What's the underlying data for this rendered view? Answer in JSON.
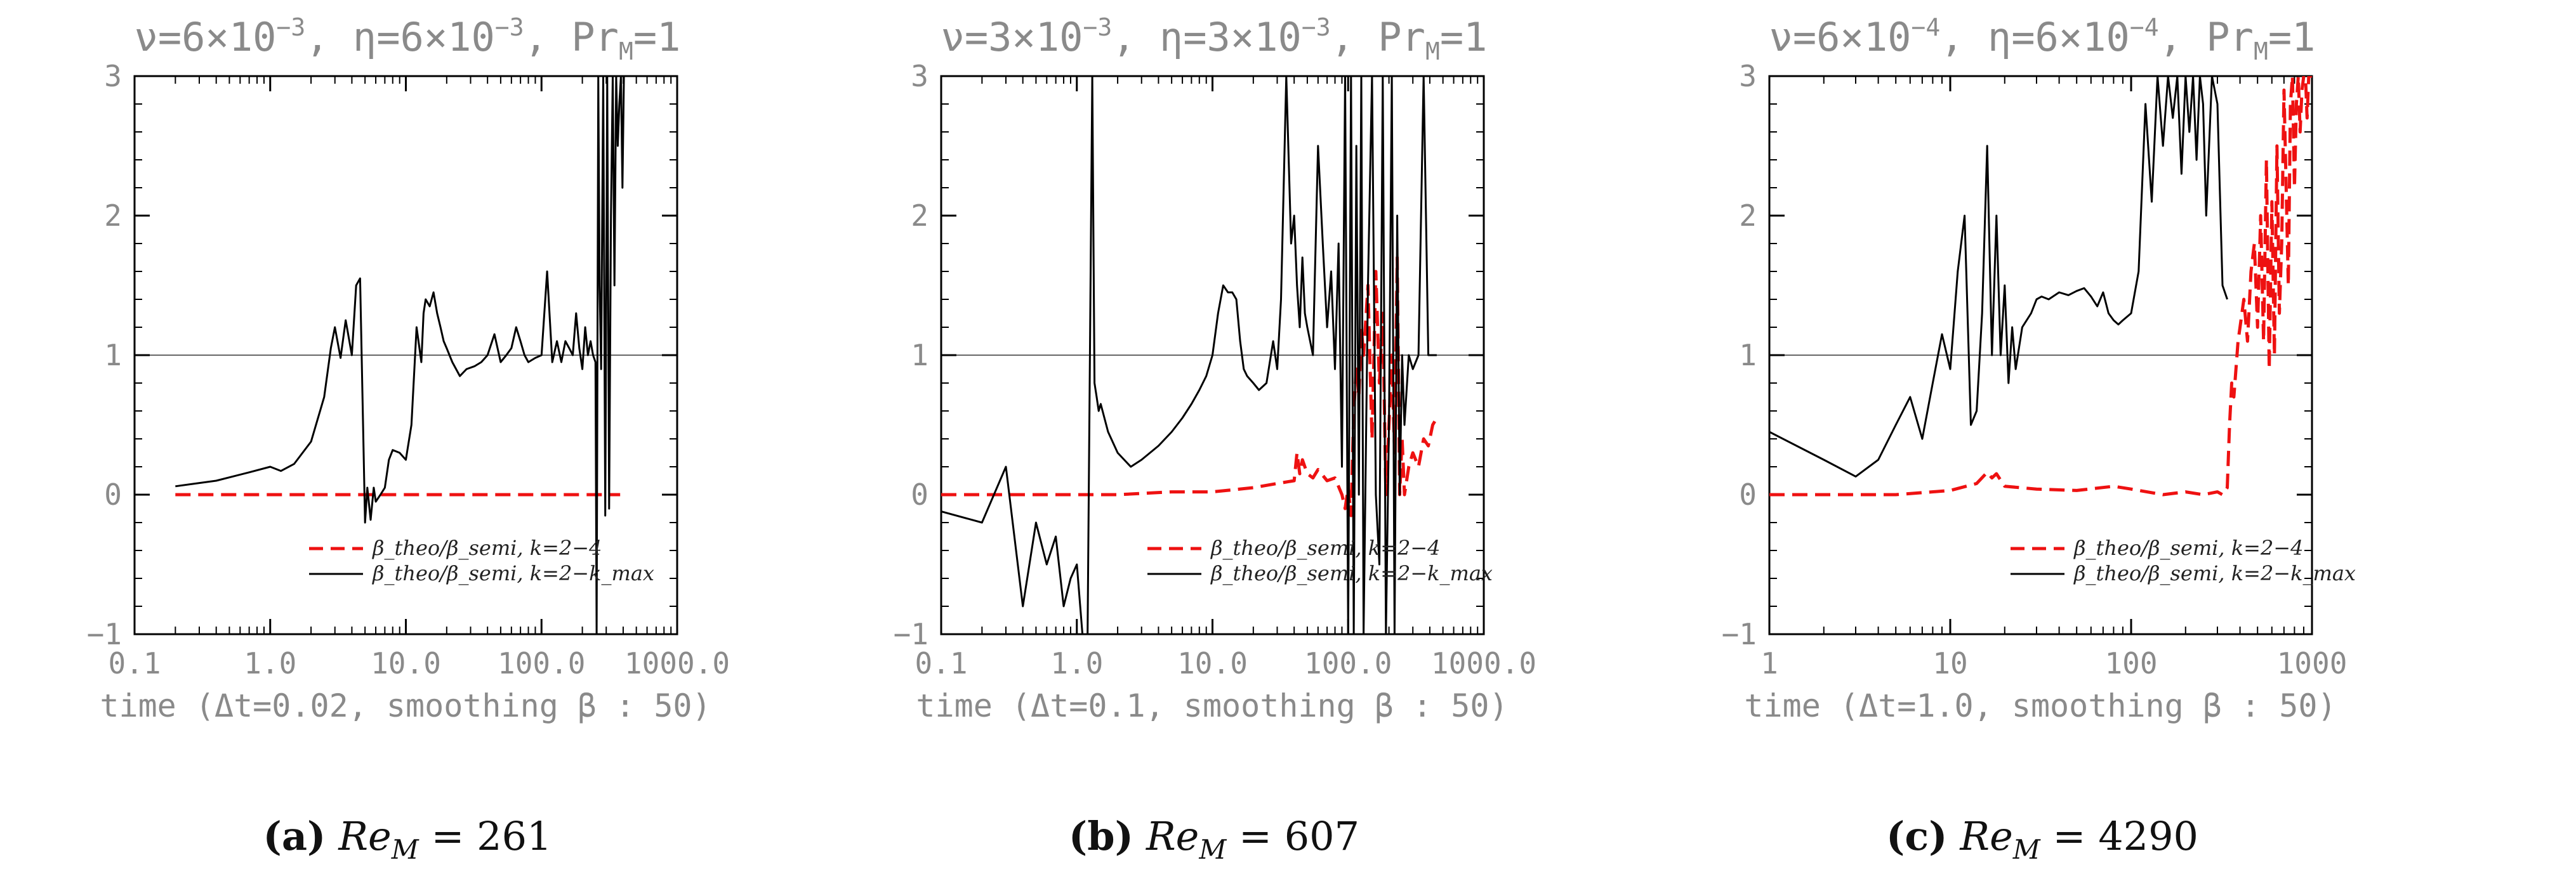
{
  "figure": {
    "colors": {
      "black_series": "#000000",
      "red_series": "#ee1111",
      "reference": "#666666",
      "axis": "#000000",
      "text": "#8a8a8a"
    }
  },
  "chart_data": [
    {
      "type": "line",
      "title": "ν=6×10⁻³, η=6×10⁻³, Pr_M=1",
      "title_parts": {
        "nu": "ν=6×10",
        "nu_exp": "−3",
        "eta": ", η=6×10",
        "eta_exp": "−3",
        "pr": ", Pr",
        "pr_sub": "M",
        "pr_val": "=1"
      },
      "xlabel": "time (Δt=0.02, smoothing β : 50)",
      "xscale": "log",
      "xlim": [
        0.1,
        1000
      ],
      "ylim": [
        -1,
        3
      ],
      "xticks": [
        0.1,
        1,
        10,
        100,
        1000
      ],
      "xtick_labels": [
        "0.1",
        "1.0",
        "10.0",
        "100.0",
        "1000.0"
      ],
      "yticks": [
        -1,
        0,
        1,
        2,
        3
      ],
      "ytick_labels": [
        "−1",
        "0",
        "1",
        "2",
        "3"
      ],
      "reference_line": 1,
      "caption": {
        "letter": "(a)",
        "text": "Re_M = 261",
        "value": "261"
      },
      "series": [
        {
          "name": "β_theo/β_semi, k=2−4",
          "legend_label": "β_theo/β_semi, k=2−4",
          "color": "#ee1111",
          "style": "dashed",
          "x": [
            0.2,
            0.5,
            1.0,
            2.0,
            5.0,
            10.0,
            20.0,
            50.0,
            100.0,
            200.0,
            300.0,
            380.0
          ],
          "y": [
            0.0,
            0.0,
            0.0,
            0.0,
            0.0,
            0.0,
            0.0,
            0.0,
            0.0,
            0.0,
            0.0,
            0.0
          ]
        },
        {
          "name": "β_theo/β_semi, k=2−k_max",
          "legend_label": "β_theo/β_semi, k=2−k_max",
          "color": "#000000",
          "style": "solid",
          "x": [
            0.2,
            0.4,
            0.7,
            1.0,
            1.2,
            1.5,
            2.0,
            2.5,
            2.8,
            3.0,
            3.3,
            3.6,
            4.0,
            4.3,
            4.6,
            5.0,
            5.2,
            5.5,
            5.8,
            6.0,
            6.5,
            7.0,
            7.5,
            8.0,
            9.0,
            10.0,
            11.0,
            12.0,
            13.0,
            13.5,
            14.0,
            15.0,
            16.0,
            17.0,
            18.0,
            19.0,
            20.0,
            22.0,
            25.0,
            28.0,
            32.0,
            36.0,
            40.0,
            45.0,
            50.0,
            55.0,
            60.0,
            65.0,
            70.0,
            75.0,
            80.0,
            90.0,
            100.0,
            110.0,
            120.0,
            130.0,
            140.0,
            150.0,
            160.0,
            170.0,
            180.0,
            190.0,
            200.0,
            210.0,
            220.0,
            230.0,
            240.0,
            250.0,
            255.0,
            262.0,
            268.0,
            275.0,
            285.0,
            295.0,
            305.0,
            315.0,
            325.0,
            335.0,
            345.0,
            355.0,
            365.0,
            375.0,
            385.0,
            395.0,
            405.0
          ],
          "y": [
            0.06,
            0.1,
            0.16,
            0.2,
            0.17,
            0.22,
            0.38,
            0.7,
            1.05,
            1.2,
            0.98,
            1.25,
            1.0,
            1.5,
            1.55,
            -0.2,
            0.05,
            -0.18,
            0.05,
            -0.05,
            0.0,
            0.05,
            0.25,
            0.32,
            0.3,
            0.25,
            0.5,
            1.2,
            0.95,
            1.3,
            1.4,
            1.35,
            1.45,
            1.3,
            1.2,
            1.1,
            1.05,
            0.95,
            0.85,
            0.9,
            0.92,
            0.95,
            1.0,
            1.15,
            0.95,
            1.0,
            1.05,
            1.2,
            1.1,
            1.0,
            0.95,
            0.98,
            1.0,
            1.6,
            0.95,
            1.1,
            0.95,
            1.1,
            1.05,
            1.0,
            1.3,
            1.05,
            0.9,
            1.2,
            1.0,
            1.1,
            1.0,
            0.95,
            -1.0,
            3.0,
            1.5,
            0.9,
            3.0,
            -0.15,
            3.0,
            -0.1,
            2.0,
            3.0,
            1.5,
            3.0,
            2.5,
            2.8,
            3.0,
            2.2,
            3.0
          ]
        }
      ]
    },
    {
      "type": "line",
      "title": "ν=3×10⁻³, η=3×10⁻³, Pr_M=1",
      "title_parts": {
        "nu": "ν=3×10",
        "nu_exp": "−3",
        "eta": ", η=3×10",
        "eta_exp": "−3",
        "pr": ", Pr",
        "pr_sub": "M",
        "pr_val": "=1"
      },
      "xlabel": "time (Δt=0.1, smoothing β : 50)",
      "xscale": "log",
      "xlim": [
        0.1,
        1000
      ],
      "ylim": [
        -1,
        3
      ],
      "xticks": [
        0.1,
        1,
        10,
        100,
        1000
      ],
      "xtick_labels": [
        "0.1",
        "1.0",
        "10.0",
        "100.0",
        "1000.0"
      ],
      "yticks": [
        -1,
        0,
        1,
        2,
        3
      ],
      "ytick_labels": [
        "−1",
        "0",
        "1",
        "2",
        "3"
      ],
      "reference_line": 1,
      "caption": {
        "letter": "(b)",
        "text": "Re_M = 607",
        "value": "607"
      },
      "series": [
        {
          "name": "β_theo/β_semi, k=2−4",
          "legend_label": "β_theo/β_semi, k=2−4",
          "color": "#ee1111",
          "style": "dashed",
          "x": [
            0.1,
            0.5,
            1.0,
            2.0,
            5.0,
            10.0,
            20.0,
            30.0,
            40.0,
            42.0,
            44.0,
            46.0,
            50.0,
            55.0,
            60.0,
            70.0,
            80.0,
            90.0,
            95.0,
            100.0,
            105.0,
            110.0,
            115.0,
            120.0,
            125.0,
            130.0,
            140.0,
            150.0,
            160.0,
            170.0,
            180.0,
            190.0,
            200.0,
            210.0,
            220.0,
            230.0,
            240.0,
            250.0,
            260.0,
            280.0,
            300.0,
            330.0,
            360.0,
            390.0,
            420.0,
            450.0
          ],
          "y": [
            0.0,
            0.0,
            0.0,
            0.0,
            0.02,
            0.02,
            0.05,
            0.08,
            0.1,
            0.3,
            0.15,
            0.25,
            0.15,
            0.12,
            0.18,
            0.1,
            0.12,
            0.0,
            -0.1,
            0.05,
            -0.15,
            0.6,
            0.9,
            0.7,
            1.2,
            1.0,
            1.5,
            0.4,
            1.6,
            0.8,
            1.3,
            0.0,
            0.5,
            1.0,
            0.3,
            1.7,
            0.0,
            0.4,
            0.0,
            0.2,
            0.3,
            0.2,
            0.4,
            0.35,
            0.5,
            0.55
          ]
        },
        {
          "name": "β_theo/β_semi, k=2−k_max",
          "legend_label": "β_theo/β_semi, k=2−k_max",
          "color": "#000000",
          "style": "solid",
          "x": [
            0.1,
            0.2,
            0.3,
            0.4,
            0.5,
            0.6,
            0.7,
            0.8,
            0.9,
            1.0,
            1.1,
            1.2,
            1.3,
            1.35,
            1.4,
            1.45,
            1.5,
            1.7,
            2.0,
            2.5,
            3.0,
            4.0,
            5.0,
            6.0,
            7.0,
            8.0,
            9.0,
            10.0,
            11.0,
            12.0,
            13.0,
            14.0,
            15.0,
            16.0,
            17.0,
            18.0,
            20.0,
            22.0,
            25.0,
            28.0,
            30.0,
            32.0,
            35.0,
            38.0,
            40.0,
            42.0,
            44.0,
            46.0,
            48.0,
            50.0,
            55.0,
            60.0,
            65.0,
            70.0,
            75.0,
            80.0,
            85.0,
            90.0,
            95.0,
            100.0,
            105.0,
            110.0,
            115.0,
            120.0,
            125.0,
            130.0,
            140.0,
            150.0,
            160.0,
            170.0,
            180.0,
            190.0,
            200.0,
            210.0,
            220.0,
            230.0,
            240.0,
            250.0,
            260.0,
            280.0,
            300.0,
            330.0,
            360.0,
            390.0,
            420.0,
            450.0
          ],
          "y": [
            -0.12,
            -0.2,
            0.2,
            -0.8,
            -0.2,
            -0.5,
            -0.3,
            -0.8,
            -0.6,
            -0.5,
            -1.0,
            -1.0,
            3.0,
            0.8,
            0.7,
            0.6,
            0.65,
            0.45,
            0.3,
            0.2,
            0.25,
            0.35,
            0.45,
            0.55,
            0.65,
            0.75,
            0.85,
            1.0,
            1.3,
            1.5,
            1.45,
            1.45,
            1.4,
            1.1,
            0.9,
            0.85,
            0.8,
            0.75,
            0.8,
            1.1,
            0.9,
            1.4,
            3.0,
            1.8,
            2.0,
            1.5,
            1.2,
            1.7,
            1.3,
            1.2,
            1.0,
            2.5,
            1.8,
            1.2,
            1.6,
            0.9,
            1.8,
            0.2,
            3.0,
            -1.0,
            3.0,
            -1.0,
            2.5,
            0.0,
            3.0,
            -1.0,
            1.5,
            3.0,
            0.0,
            -0.5,
            3.0,
            -1.0,
            0.5,
            3.0,
            -1.0,
            2.0,
            0.0,
            1.0,
            0.5,
            1.0,
            0.9,
            1.0,
            3.0,
            1.0,
            1.0,
            1.0
          ]
        }
      ]
    },
    {
      "type": "line",
      "title": "ν=6×10⁻⁴, η=6×10⁻⁴, Pr_M=1",
      "title_parts": {
        "nu": "ν=6×10",
        "nu_exp": "−4",
        "eta": ", η=6×10",
        "eta_exp": "−4",
        "pr": ", Pr",
        "pr_sub": "M",
        "pr_val": "=1"
      },
      "xlabel": "time (Δt=1.0, smoothing β : 50)",
      "xscale": "log",
      "xlim": [
        1,
        1000
      ],
      "ylim": [
        -1,
        3
      ],
      "xticks": [
        1,
        10,
        100,
        1000
      ],
      "xtick_labels": [
        "1",
        "10",
        "100",
        "1000"
      ],
      "yticks": [
        -1,
        0,
        1,
        2,
        3
      ],
      "ytick_labels": [
        "−1",
        "0",
        "1",
        "2",
        "3"
      ],
      "reference_line": 1,
      "caption": {
        "letter": "(c)",
        "text": "Re_M = 4290",
        "value": "4290"
      },
      "series": [
        {
          "name": "β_theo/β_semi, k=2−4",
          "legend_label": "β_theo/β_semi, k=2−4",
          "color": "#ee1111",
          "style": "dashed",
          "x": [
            1,
            2,
            5,
            10,
            14,
            16,
            17,
            18,
            20,
            30,
            50,
            80,
            100,
            150,
            200,
            250,
            300,
            320,
            340,
            350,
            360,
            370,
            380,
            390,
            400,
            420,
            440,
            460,
            480,
            500,
            520,
            540,
            560,
            580,
            600,
            620,
            640,
            660,
            680,
            700,
            720,
            740,
            760,
            780,
            800,
            820,
            840,
            860,
            880,
            900,
            920,
            940,
            960,
            980,
            1000
          ],
          "y": [
            0.0,
            0.0,
            0.0,
            0.03,
            0.08,
            0.16,
            0.12,
            0.15,
            0.06,
            0.04,
            0.03,
            0.06,
            0.04,
            0.0,
            0.02,
            0.0,
            0.02,
            0.0,
            0.05,
            0.5,
            0.8,
            0.7,
            0.9,
            1.1,
            1.2,
            1.4,
            1.1,
            1.6,
            1.8,
            1.2,
            2.0,
            1.1,
            2.4,
            0.9,
            2.1,
            1.0,
            2.5,
            1.3,
            1.8,
            2.9,
            2.2,
            1.5,
            2.8,
            3.0,
            2.2,
            2.8,
            3.0,
            2.6,
            2.9,
            3.0,
            3.0,
            2.7,
            3.0,
            3.0,
            3.0
          ]
        },
        {
          "name": "β_theo/β_semi, k=2−k_max",
          "legend_label": "β_theo/β_semi, k=2−k_max",
          "color": "#000000",
          "style": "solid",
          "x": [
            1.0,
            2.0,
            3.0,
            4.0,
            5.0,
            6.0,
            7.0,
            8.0,
            9.0,
            10.0,
            11.0,
            12.0,
            13.0,
            14.0,
            15.0,
            16.0,
            17.0,
            18.0,
            19.0,
            20.0,
            21.0,
            22.0,
            23.0,
            25.0,
            28.0,
            30.0,
            32.0,
            35.0,
            40.0,
            45.0,
            50.0,
            55.0,
            60.0,
            65.0,
            70.0,
            75.0,
            80.0,
            85.0,
            90.0,
            100.0,
            110.0,
            120.0,
            130.0,
            140.0,
            150.0,
            160.0,
            170.0,
            180.0,
            190.0,
            200.0,
            210.0,
            220.0,
            230.0,
            240.0,
            250.0,
            260.0,
            280.0,
            300.0,
            320.0,
            340.0
          ],
          "y": [
            0.45,
            0.25,
            0.13,
            0.25,
            0.5,
            0.7,
            0.4,
            0.8,
            1.15,
            0.9,
            1.6,
            2.0,
            0.5,
            0.6,
            1.3,
            2.5,
            1.0,
            2.0,
            1.0,
            1.5,
            0.8,
            1.2,
            0.9,
            1.2,
            1.3,
            1.4,
            1.42,
            1.4,
            1.45,
            1.43,
            1.46,
            1.48,
            1.42,
            1.35,
            1.45,
            1.3,
            1.25,
            1.22,
            1.25,
            1.3,
            1.6,
            2.8,
            2.1,
            3.0,
            2.5,
            3.0,
            2.7,
            3.0,
            2.3,
            3.0,
            2.6,
            3.0,
            2.4,
            3.0,
            2.8,
            2.0,
            3.0,
            2.8,
            1.5,
            1.4
          ]
        }
      ]
    }
  ]
}
